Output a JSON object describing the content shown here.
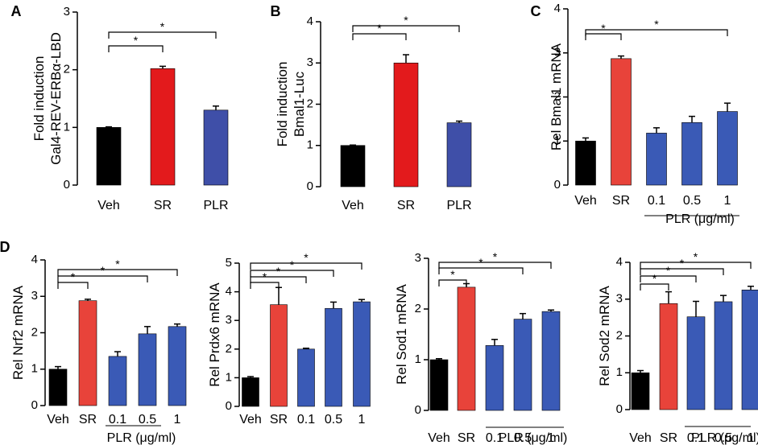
{
  "chart_data": [
    {
      "panel": "A",
      "type": "bar",
      "categories": [
        "Veh",
        "SR",
        "PLR"
      ],
      "values": [
        1.0,
        2.02,
        1.3
      ],
      "errors": [
        0.01,
        0.04,
        0.07
      ],
      "colors": [
        "#000000",
        "#e31a1c",
        "#3f4fa8"
      ],
      "ylim": [
        0,
        3
      ],
      "yticks": [
        "0",
        "1",
        "2",
        "3"
      ],
      "ylabel_lines": [
        "Fold induction",
        "Gal4-REV-ERBα-LBD"
      ],
      "group_label": "",
      "sig_stars": [
        "*",
        "*"
      ]
    },
    {
      "panel": "B",
      "type": "bar",
      "categories": [
        "Veh",
        "SR",
        "PLR"
      ],
      "values": [
        1.0,
        3.0,
        1.55
      ],
      "errors": [
        0.01,
        0.2,
        0.04
      ],
      "colors": [
        "#000000",
        "#e31a1c",
        "#3f4fa8"
      ],
      "ylim": [
        0,
        4
      ],
      "yticks": [
        "0",
        "1",
        "2",
        "3",
        "4"
      ],
      "ylabel_lines": [
        "Fold induction",
        "Bmal1-Luc"
      ],
      "group_label": "",
      "sig_stars": [
        "*",
        "*"
      ]
    },
    {
      "panel": "C",
      "type": "bar",
      "categories": [
        "Veh",
        "SR",
        "0.1",
        "0.5",
        "1"
      ],
      "values": [
        1.0,
        2.87,
        1.18,
        1.42,
        1.67
      ],
      "errors": [
        0.07,
        0.06,
        0.12,
        0.14,
        0.19
      ],
      "colors": [
        "#000000",
        "#e8433a",
        "#3a5ab6",
        "#3a5ab6",
        "#3a5ab6"
      ],
      "ylim": [
        0,
        4
      ],
      "yticks": [
        "0",
        "1",
        "2",
        "3",
        "4"
      ],
      "ylabel_lines": [
        "Rel Bmal1 mRNA"
      ],
      "group_label": "PLR (μg/ml)",
      "sig_stars": [
        "*",
        "*"
      ]
    },
    {
      "panel": "D",
      "type": "bar",
      "categories": [
        "Veh",
        "SR",
        "0.1",
        "0.5",
        "1"
      ],
      "values": [
        1.0,
        2.88,
        1.35,
        1.97,
        2.17
      ],
      "errors": [
        0.07,
        0.04,
        0.13,
        0.2,
        0.07
      ],
      "colors": [
        "#000000",
        "#e8433a",
        "#3a5ab6",
        "#3a5ab6",
        "#3a5ab6"
      ],
      "ylim": [
        0,
        4
      ],
      "yticks": [
        "0",
        "1",
        "2",
        "3",
        "4"
      ],
      "ylabel_lines": [
        "Rel Nrf2 mRNA"
      ],
      "group_label": "PLR (μg/ml)",
      "sig_stars": [
        "*",
        "*",
        "*"
      ]
    },
    {
      "panel": "",
      "type": "bar",
      "categories": [
        "Veh",
        "SR",
        "0.1",
        "0.5",
        "1"
      ],
      "values": [
        1.0,
        3.55,
        2.0,
        3.42,
        3.65
      ],
      "errors": [
        0.04,
        0.6,
        0.03,
        0.22,
        0.08
      ],
      "colors": [
        "#000000",
        "#e8433a",
        "#3a5ab6",
        "#3a5ab6",
        "#3a5ab6"
      ],
      "ylim": [
        0,
        5
      ],
      "yticks": [
        "0",
        "1",
        "2",
        "3",
        "4",
        "5"
      ],
      "ylabel_lines": [
        "Rel Prdx6 mRNA"
      ],
      "group_label": "",
      "sig_stars": [
        "*",
        "*",
        "*",
        "*"
      ]
    },
    {
      "panel": "",
      "type": "bar",
      "categories": [
        "Veh",
        "SR",
        "0.1",
        "0.5",
        "1"
      ],
      "values": [
        1.0,
        2.43,
        1.28,
        1.8,
        1.95
      ],
      "errors": [
        0.02,
        0.07,
        0.12,
        0.11,
        0.03
      ],
      "colors": [
        "#000000",
        "#e8433a",
        "#3a5ab6",
        "#3a5ab6",
        "#3a5ab6"
      ],
      "ylim": [
        0,
        3
      ],
      "yticks": [
        "0",
        "1",
        "2",
        "3"
      ],
      "ylabel_lines": [
        "Rel Sod1 mRNA"
      ],
      "group_label": "PLR (μg/ml)",
      "sig_stars": [
        "*",
        "*",
        "*",
        "*"
      ]
    },
    {
      "panel": "",
      "type": "bar",
      "categories": [
        "Veh",
        "SR",
        "0.1",
        "0.5",
        "1"
      ],
      "values": [
        1.0,
        2.88,
        2.52,
        2.93,
        3.25
      ],
      "errors": [
        0.06,
        0.32,
        0.42,
        0.17,
        0.1
      ],
      "colors": [
        "#000000",
        "#e8433a",
        "#3a5ab6",
        "#3a5ab6",
        "#3a5ab6"
      ],
      "ylim": [
        0,
        4
      ],
      "yticks": [
        "0",
        "1",
        "2",
        "3",
        "4"
      ],
      "ylabel_lines": [
        "Rel Sod2 mRNA"
      ],
      "group_label": "PLR (μg/ml)",
      "sig_stars": [
        "*",
        "*",
        "*",
        "*"
      ]
    }
  ]
}
